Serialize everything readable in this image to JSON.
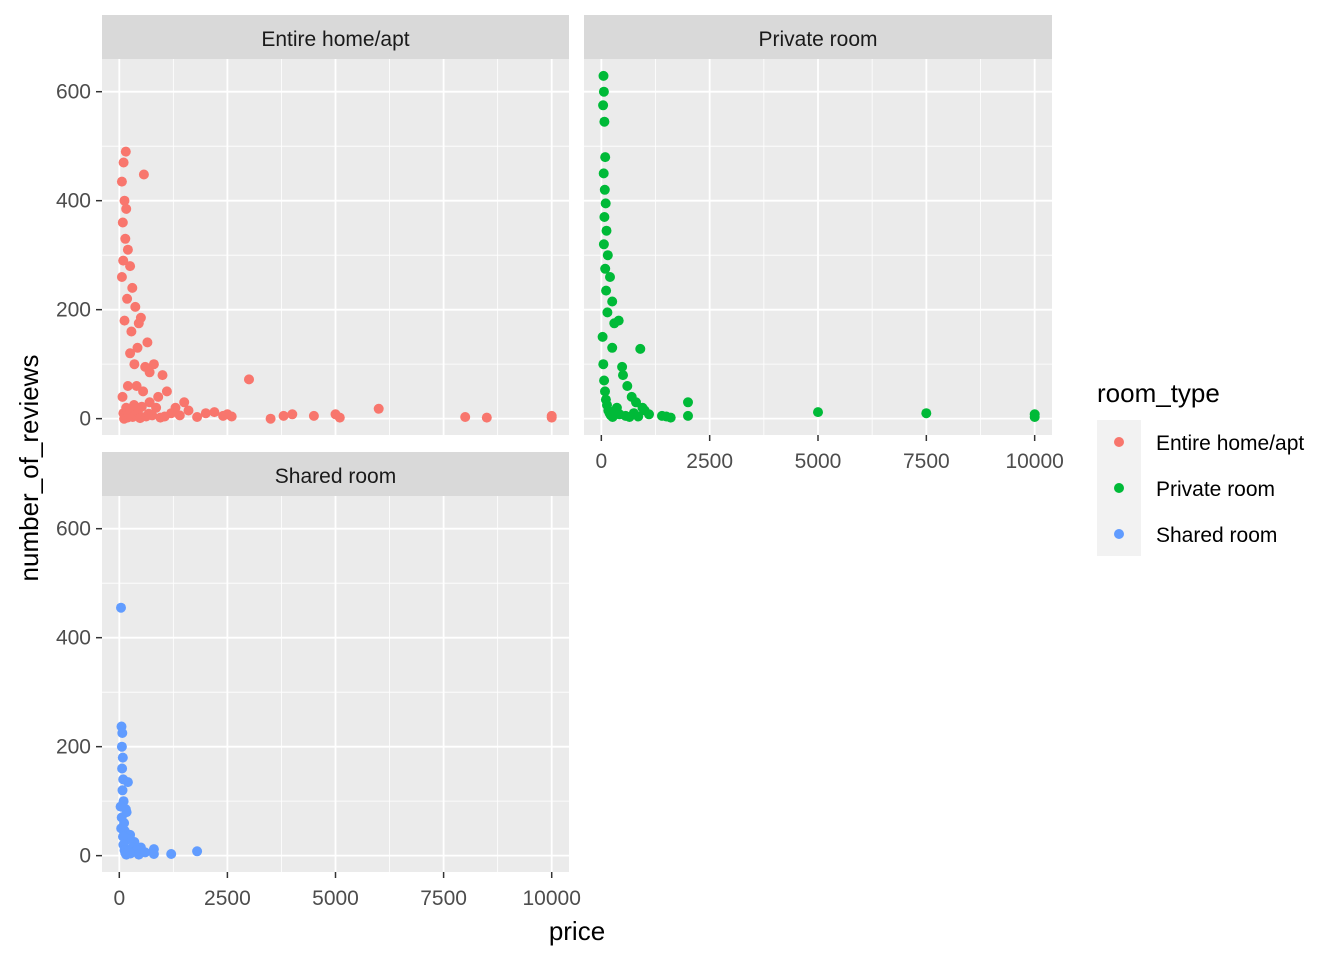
{
  "chart_data": {
    "type": "scatter",
    "x_label": "price",
    "y_label": "number_of_reviews",
    "xlim": [
      -400,
      10400
    ],
    "ylim": [
      -30,
      660
    ],
    "x_ticks": [
      0,
      2500,
      5000,
      7500,
      10000
    ],
    "y_ticks": [
      0,
      200,
      400,
      600
    ],
    "grid": true,
    "legend": {
      "title": "room_type",
      "position": "right",
      "entries": [
        "Entire home/apt",
        "Private room",
        "Shared room"
      ]
    },
    "colors": {
      "Entire home/apt": "#F8766D",
      "Private room": "#00BA38",
      "Shared room": "#619CFF"
    },
    "series": [
      {
        "name": "Entire home/apt",
        "points": [
          [
            150,
            490
          ],
          [
            100,
            470
          ],
          [
            60,
            435
          ],
          [
            570,
            448
          ],
          [
            120,
            400
          ],
          [
            160,
            385
          ],
          [
            80,
            360
          ],
          [
            140,
            330
          ],
          [
            200,
            310
          ],
          [
            90,
            290
          ],
          [
            250,
            280
          ],
          [
            60,
            260
          ],
          [
            300,
            240
          ],
          [
            180,
            220
          ],
          [
            370,
            205
          ],
          [
            500,
            185
          ],
          [
            450,
            175
          ],
          [
            280,
            160
          ],
          [
            650,
            140
          ],
          [
            420,
            130
          ],
          [
            800,
            100
          ],
          [
            600,
            95
          ],
          [
            700,
            85
          ],
          [
            1000,
            80
          ],
          [
            1100,
            50
          ],
          [
            900,
            40
          ],
          [
            1500,
            30
          ],
          [
            1300,
            20
          ],
          [
            1600,
            15
          ],
          [
            2000,
            10
          ],
          [
            2400,
            5
          ],
          [
            2500,
            8
          ],
          [
            3000,
            72
          ],
          [
            3500,
            0
          ],
          [
            3800,
            5
          ],
          [
            4000,
            8
          ],
          [
            4500,
            5
          ],
          [
            5000,
            8
          ],
          [
            5100,
            2
          ],
          [
            6000,
            18
          ],
          [
            8000,
            3
          ],
          [
            8500,
            2
          ],
          [
            10000,
            5
          ],
          [
            10000,
            2
          ],
          [
            400,
            60
          ],
          [
            550,
            50
          ],
          [
            250,
            120
          ],
          [
            120,
            180
          ],
          [
            350,
            100
          ],
          [
            200,
            60
          ],
          [
            700,
            30
          ],
          [
            850,
            20
          ],
          [
            1200,
            10
          ],
          [
            1800,
            3
          ],
          [
            2200,
            12
          ],
          [
            2600,
            4
          ],
          [
            75,
            40
          ],
          [
            95,
            10
          ],
          [
            110,
            0
          ],
          [
            130,
            5
          ],
          [
            160,
            20
          ],
          [
            190,
            2
          ],
          [
            220,
            8
          ],
          [
            260,
            15
          ],
          [
            310,
            3
          ],
          [
            340,
            25
          ],
          [
            380,
            7
          ],
          [
            430,
            12
          ],
          [
            480,
            1
          ],
          [
            520,
            22
          ],
          [
            620,
            4
          ],
          [
            680,
            9
          ],
          [
            760,
            6
          ],
          [
            950,
            2
          ],
          [
            1050,
            4
          ],
          [
            1400,
            6
          ]
        ]
      },
      {
        "name": "Private room",
        "points": [
          [
            50,
            629
          ],
          [
            60,
            600
          ],
          [
            40,
            575
          ],
          [
            70,
            545
          ],
          [
            90,
            480
          ],
          [
            55,
            450
          ],
          [
            80,
            420
          ],
          [
            100,
            395
          ],
          [
            70,
            370
          ],
          [
            120,
            345
          ],
          [
            60,
            320
          ],
          [
            150,
            300
          ],
          [
            90,
            275
          ],
          [
            200,
            260
          ],
          [
            110,
            235
          ],
          [
            250,
            215
          ],
          [
            140,
            195
          ],
          [
            300,
            175
          ],
          [
            400,
            180
          ],
          [
            250,
            130
          ],
          [
            480,
            95
          ],
          [
            900,
            128
          ],
          [
            500,
            80
          ],
          [
            600,
            60
          ],
          [
            700,
            40
          ],
          [
            800,
            30
          ],
          [
            950,
            20
          ],
          [
            1000,
            15
          ],
          [
            1100,
            8
          ],
          [
            1400,
            5
          ],
          [
            1500,
            4
          ],
          [
            1600,
            2
          ],
          [
            2000,
            30
          ],
          [
            2000,
            5
          ],
          [
            5000,
            12
          ],
          [
            7500,
            10
          ],
          [
            10000,
            8
          ],
          [
            10000,
            3
          ],
          [
            30,
            150
          ],
          [
            45,
            100
          ],
          [
            65,
            70
          ],
          [
            85,
            50
          ],
          [
            105,
            35
          ],
          [
            130,
            25
          ],
          [
            160,
            15
          ],
          [
            190,
            10
          ],
          [
            220,
            6
          ],
          [
            260,
            3
          ],
          [
            320,
            12
          ],
          [
            360,
            20
          ],
          [
            420,
            8
          ],
          [
            560,
            5
          ],
          [
            650,
            3
          ],
          [
            750,
            10
          ],
          [
            850,
            4
          ]
        ]
      },
      {
        "name": "Shared room",
        "points": [
          [
            40,
            455
          ],
          [
            50,
            237
          ],
          [
            70,
            225
          ],
          [
            60,
            200
          ],
          [
            80,
            180
          ],
          [
            65,
            160
          ],
          [
            90,
            140
          ],
          [
            200,
            135
          ],
          [
            75,
            120
          ],
          [
            100,
            100
          ],
          [
            150,
            85
          ],
          [
            170,
            80
          ],
          [
            110,
            60
          ],
          [
            130,
            45
          ],
          [
            250,
            38
          ],
          [
            180,
            30
          ],
          [
            350,
            25
          ],
          [
            300,
            15
          ],
          [
            500,
            15
          ],
          [
            400,
            10
          ],
          [
            800,
            12
          ],
          [
            800,
            3
          ],
          [
            1200,
            3
          ],
          [
            1800,
            8
          ],
          [
            30,
            90
          ],
          [
            55,
            70
          ],
          [
            45,
            50
          ],
          [
            85,
            35
          ],
          [
            95,
            20
          ],
          [
            120,
            10
          ],
          [
            140,
            5
          ],
          [
            160,
            2
          ],
          [
            220,
            8
          ],
          [
            260,
            4
          ],
          [
            450,
            2
          ],
          [
            600,
            6
          ]
        ]
      }
    ]
  }
}
